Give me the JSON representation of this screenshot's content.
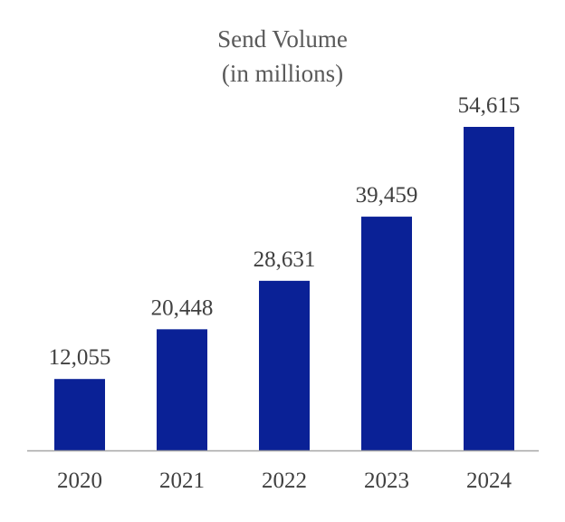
{
  "chart_data": {
    "type": "bar",
    "title": "Send Volume",
    "subtitle": "(in millions)",
    "categories": [
      "2020",
      "2021",
      "2022",
      "2023",
      "2024"
    ],
    "values": [
      12055,
      20448,
      28631,
      39459,
      54615
    ],
    "value_labels": [
      "12,055",
      "20,448",
      "28,631",
      "39,459",
      "54,615"
    ],
    "ylim": [
      0,
      60000
    ],
    "grid": false,
    "legend": "none",
    "bar_color": "#0a2196",
    "axis_color": "#a6a6a6"
  }
}
